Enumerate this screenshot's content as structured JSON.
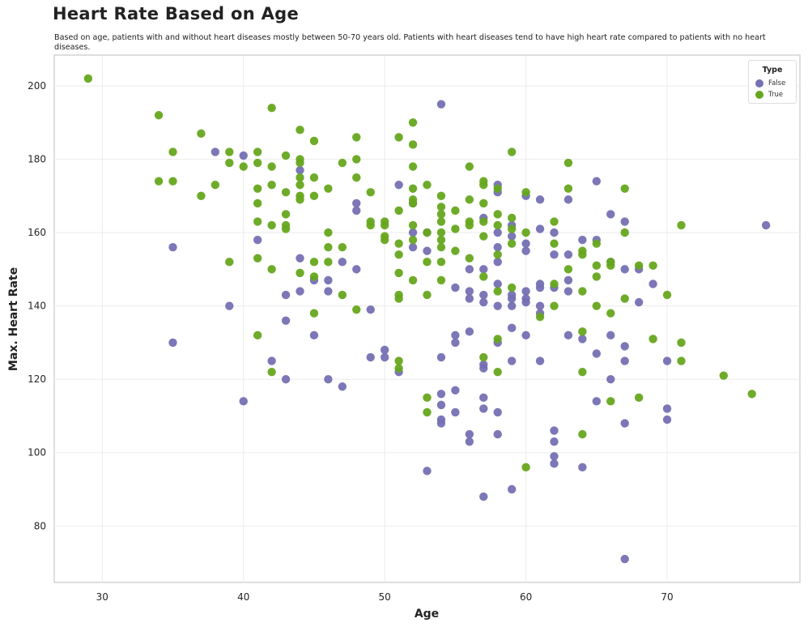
{
  "header": {
    "title": "Heart Rate Based on Age",
    "subtitle": "Based on age, patients with and without heart diseases mostly between 50-70 years old. Patients with heart diseases tend to have high heart rate compared to patients with no heart diseases."
  },
  "chart_data": {
    "type": "scatter",
    "title": "Heart Rate Based on Age",
    "xlabel": "Age",
    "ylabel": "Max. Heart Rate",
    "xlim": [
      26.6,
      79.4
    ],
    "ylim": [
      64.6,
      208.4
    ],
    "xticks": [
      30,
      40,
      50,
      60,
      70
    ],
    "yticks": [
      80,
      100,
      120,
      140,
      160,
      180,
      200
    ],
    "grid": true,
    "legend": {
      "title": "Type",
      "placement": "top-right"
    },
    "series": [
      {
        "name": "False",
        "color": "#7570b3",
        "points": [
          [
            35,
            156
          ],
          [
            35,
            130
          ],
          [
            38,
            182
          ],
          [
            39,
            140
          ],
          [
            40,
            181
          ],
          [
            40,
            114
          ],
          [
            41,
            158
          ],
          [
            42,
            125
          ],
          [
            43,
            143
          ],
          [
            43,
            136
          ],
          [
            43,
            120
          ],
          [
            44,
            177
          ],
          [
            44,
            153
          ],
          [
            44,
            144
          ],
          [
            45,
            147
          ],
          [
            45,
            132
          ],
          [
            46,
            147
          ],
          [
            46,
            144
          ],
          [
            46,
            120
          ],
          [
            47,
            152
          ],
          [
            47,
            118
          ],
          [
            48,
            168
          ],
          [
            48,
            166
          ],
          [
            48,
            150
          ],
          [
            49,
            139
          ],
          [
            49,
            126
          ],
          [
            50,
            128
          ],
          [
            50,
            126
          ],
          [
            51,
            173
          ],
          [
            51,
            122
          ],
          [
            52,
            168
          ],
          [
            52,
            160
          ],
          [
            52,
            156
          ],
          [
            53,
            160
          ],
          [
            53,
            155
          ],
          [
            53,
            95
          ],
          [
            54,
            195
          ],
          [
            54,
            126
          ],
          [
            54,
            116
          ],
          [
            54,
            113
          ],
          [
            54,
            109
          ],
          [
            54,
            108
          ],
          [
            55,
            145
          ],
          [
            55,
            132
          ],
          [
            55,
            130
          ],
          [
            55,
            117
          ],
          [
            55,
            111
          ],
          [
            56,
            150
          ],
          [
            56,
            144
          ],
          [
            56,
            142
          ],
          [
            56,
            133
          ],
          [
            56,
            105
          ],
          [
            56,
            103
          ],
          [
            57,
            164
          ],
          [
            57,
            150
          ],
          [
            57,
            143
          ],
          [
            57,
            141
          ],
          [
            57,
            124
          ],
          [
            57,
            123
          ],
          [
            57,
            115
          ],
          [
            57,
            112
          ],
          [
            57,
            88
          ],
          [
            58,
            173
          ],
          [
            58,
            171
          ],
          [
            58,
            160
          ],
          [
            58,
            156
          ],
          [
            58,
            152
          ],
          [
            58,
            146
          ],
          [
            58,
            140
          ],
          [
            58,
            130
          ],
          [
            58,
            111
          ],
          [
            58,
            105
          ],
          [
            59,
            162
          ],
          [
            59,
            159
          ],
          [
            59,
            143
          ],
          [
            59,
            142
          ],
          [
            59,
            140
          ],
          [
            59,
            134
          ],
          [
            59,
            125
          ],
          [
            59,
            90
          ],
          [
            60,
            170
          ],
          [
            60,
            157
          ],
          [
            60,
            155
          ],
          [
            60,
            144
          ],
          [
            60,
            142
          ],
          [
            60,
            141
          ],
          [
            60,
            132
          ],
          [
            61,
            169
          ],
          [
            61,
            161
          ],
          [
            61,
            146
          ],
          [
            61,
            145
          ],
          [
            61,
            140
          ],
          [
            61,
            138
          ],
          [
            61,
            125
          ],
          [
            62,
            160
          ],
          [
            62,
            154
          ],
          [
            62,
            145
          ],
          [
            62,
            106
          ],
          [
            62,
            103
          ],
          [
            62,
            99
          ],
          [
            62,
            97
          ],
          [
            63,
            169
          ],
          [
            63,
            154
          ],
          [
            63,
            147
          ],
          [
            63,
            144
          ],
          [
            63,
            132
          ],
          [
            64,
            158
          ],
          [
            64,
            131
          ],
          [
            64,
            96
          ],
          [
            65,
            174
          ],
          [
            65,
            158
          ],
          [
            65,
            127
          ],
          [
            65,
            114
          ],
          [
            66,
            165
          ],
          [
            66,
            152
          ],
          [
            66,
            132
          ],
          [
            66,
            120
          ],
          [
            67,
            163
          ],
          [
            67,
            150
          ],
          [
            67,
            129
          ],
          [
            67,
            125
          ],
          [
            67,
            108
          ],
          [
            67,
            71
          ],
          [
            68,
            150
          ],
          [
            68,
            141
          ],
          [
            69,
            146
          ],
          [
            70,
            125
          ],
          [
            70,
            112
          ],
          [
            70,
            109
          ],
          [
            77,
            162
          ]
        ]
      },
      {
        "name": "True",
        "color": "#66a61e",
        "points": [
          [
            29,
            202
          ],
          [
            34,
            192
          ],
          [
            34,
            174
          ],
          [
            35,
            182
          ],
          [
            35,
            174
          ],
          [
            37,
            187
          ],
          [
            37,
            170
          ],
          [
            38,
            173
          ],
          [
            39,
            182
          ],
          [
            39,
            179
          ],
          [
            39,
            152
          ],
          [
            40,
            178
          ],
          [
            41,
            182
          ],
          [
            41,
            179
          ],
          [
            41,
            172
          ],
          [
            41,
            168
          ],
          [
            41,
            163
          ],
          [
            41,
            153
          ],
          [
            41,
            132
          ],
          [
            42,
            194
          ],
          [
            42,
            178
          ],
          [
            42,
            173
          ],
          [
            42,
            162
          ],
          [
            42,
            150
          ],
          [
            42,
            122
          ],
          [
            43,
            181
          ],
          [
            43,
            171
          ],
          [
            43,
            165
          ],
          [
            43,
            162
          ],
          [
            43,
            161
          ],
          [
            44,
            188
          ],
          [
            44,
            180
          ],
          [
            44,
            179
          ],
          [
            44,
            175
          ],
          [
            44,
            173
          ],
          [
            44,
            170
          ],
          [
            44,
            169
          ],
          [
            44,
            149
          ],
          [
            45,
            185
          ],
          [
            45,
            175
          ],
          [
            45,
            170
          ],
          [
            45,
            152
          ],
          [
            45,
            148
          ],
          [
            45,
            138
          ],
          [
            46,
            172
          ],
          [
            46,
            160
          ],
          [
            46,
            156
          ],
          [
            46,
            152
          ],
          [
            47,
            179
          ],
          [
            47,
            156
          ],
          [
            47,
            143
          ],
          [
            48,
            186
          ],
          [
            48,
            180
          ],
          [
            48,
            175
          ],
          [
            48,
            139
          ],
          [
            49,
            171
          ],
          [
            49,
            163
          ],
          [
            49,
            162
          ],
          [
            50,
            163
          ],
          [
            50,
            162
          ],
          [
            50,
            159
          ],
          [
            50,
            158
          ],
          [
            51,
            186
          ],
          [
            51,
            166
          ],
          [
            51,
            157
          ],
          [
            51,
            154
          ],
          [
            51,
            149
          ],
          [
            51,
            143
          ],
          [
            51,
            142
          ],
          [
            51,
            125
          ],
          [
            51,
            123
          ],
          [
            52,
            190
          ],
          [
            52,
            184
          ],
          [
            52,
            178
          ],
          [
            52,
            172
          ],
          [
            52,
            169
          ],
          [
            52,
            168
          ],
          [
            52,
            162
          ],
          [
            52,
            158
          ],
          [
            52,
            147
          ],
          [
            53,
            173
          ],
          [
            53,
            160
          ],
          [
            53,
            152
          ],
          [
            53,
            143
          ],
          [
            53,
            115
          ],
          [
            53,
            111
          ],
          [
            54,
            170
          ],
          [
            54,
            167
          ],
          [
            54,
            165
          ],
          [
            54,
            163
          ],
          [
            54,
            160
          ],
          [
            54,
            158
          ],
          [
            54,
            156
          ],
          [
            54,
            152
          ],
          [
            54,
            147
          ],
          [
            55,
            166
          ],
          [
            55,
            161
          ],
          [
            55,
            155
          ],
          [
            56,
            178
          ],
          [
            56,
            169
          ],
          [
            56,
            163
          ],
          [
            56,
            162
          ],
          [
            56,
            153
          ],
          [
            57,
            174
          ],
          [
            57,
            173
          ],
          [
            57,
            168
          ],
          [
            57,
            163
          ],
          [
            57,
            159
          ],
          [
            57,
            148
          ],
          [
            57,
            126
          ],
          [
            58,
            172
          ],
          [
            58,
            165
          ],
          [
            58,
            162
          ],
          [
            58,
            154
          ],
          [
            58,
            144
          ],
          [
            58,
            131
          ],
          [
            58,
            122
          ],
          [
            59,
            182
          ],
          [
            59,
            164
          ],
          [
            59,
            161
          ],
          [
            59,
            157
          ],
          [
            59,
            145
          ],
          [
            60,
            171
          ],
          [
            60,
            160
          ],
          [
            60,
            96
          ],
          [
            61,
            137
          ],
          [
            62,
            163
          ],
          [
            62,
            157
          ],
          [
            62,
            146
          ],
          [
            62,
            140
          ],
          [
            63,
            179
          ],
          [
            63,
            172
          ],
          [
            63,
            150
          ],
          [
            64,
            155
          ],
          [
            64,
            154
          ],
          [
            64,
            144
          ],
          [
            64,
            133
          ],
          [
            64,
            122
          ],
          [
            64,
            105
          ],
          [
            65,
            157
          ],
          [
            65,
            151
          ],
          [
            65,
            148
          ],
          [
            65,
            140
          ],
          [
            66,
            152
          ],
          [
            66,
            151
          ],
          [
            66,
            138
          ],
          [
            66,
            114
          ],
          [
            67,
            172
          ],
          [
            67,
            160
          ],
          [
            67,
            142
          ],
          [
            68,
            151
          ],
          [
            68,
            115
          ],
          [
            69,
            151
          ],
          [
            69,
            131
          ],
          [
            70,
            143
          ],
          [
            71,
            162
          ],
          [
            71,
            130
          ],
          [
            71,
            125
          ],
          [
            74,
            121
          ],
          [
            76,
            116
          ]
        ]
      }
    ]
  }
}
